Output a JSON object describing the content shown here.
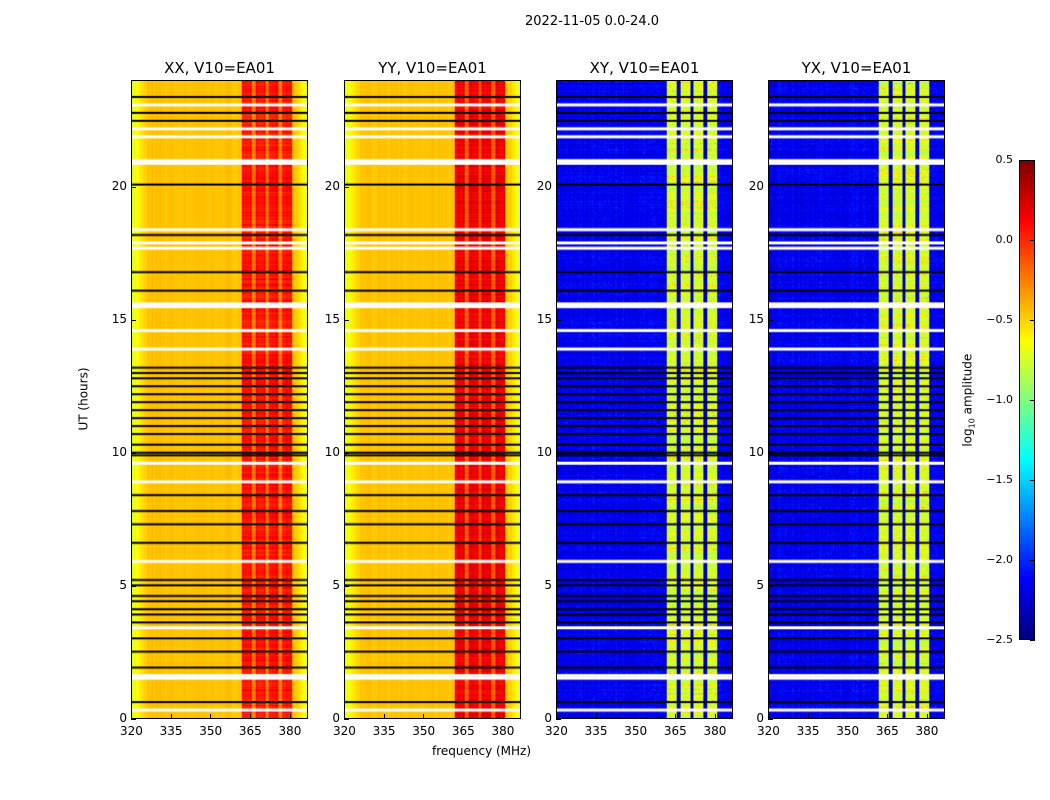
{
  "chart_data": {
    "type": "heatmap",
    "suptitle": "2022-11-05 0.0-24.0",
    "xlabel": "frequency (MHz)",
    "ylabel": "UT (hours)",
    "xlim": [
      320,
      387
    ],
    "ylim": [
      0,
      24
    ],
    "xticks": [
      320,
      335,
      350,
      365,
      380
    ],
    "yticks": [
      0,
      5,
      10,
      15,
      20
    ],
    "panels": [
      {
        "title": "XX, V10=EA01",
        "kind": "parallel"
      },
      {
        "title": "YY, V10=EA01",
        "kind": "parallel"
      },
      {
        "title": "XY, V10=EA01",
        "kind": "cross"
      },
      {
        "title": "YX, V10=EA01",
        "kind": "cross"
      }
    ],
    "colorbar": {
      "label_prefix": "log",
      "label_sub": "10",
      "label_suffix": " amplitude",
      "range": [
        -2.5,
        0.5
      ],
      "ticks": [
        "0.5",
        "0.0",
        "−0.5",
        "−1.0",
        "−1.5",
        "−2.0",
        "−2.5"
      ],
      "colormap": "jet"
    },
    "flagged_white_hours": [
      23.1,
      22.2,
      21.9,
      21.0,
      20.9,
      18.4,
      17.9,
      17.7,
      15.6,
      15.5,
      14.6,
      13.9,
      9.6,
      8.9,
      5.9,
      3.4,
      1.6,
      1.5,
      0.3
    ],
    "flagged_black_hours": [
      23.4,
      22.8,
      22.5,
      20.1,
      18.2,
      16.8,
      16.1,
      13.2,
      13.0,
      12.8,
      12.5,
      12.2,
      11.9,
      11.6,
      11.3,
      11.0,
      10.7,
      10.3,
      10.0,
      9.9,
      8.4,
      7.8,
      7.3,
      6.6,
      5.2,
      5.0,
      4.6,
      4.4,
      4.1,
      3.9,
      3.6,
      3.0,
      2.5,
      1.9,
      0.6
    ]
  }
}
